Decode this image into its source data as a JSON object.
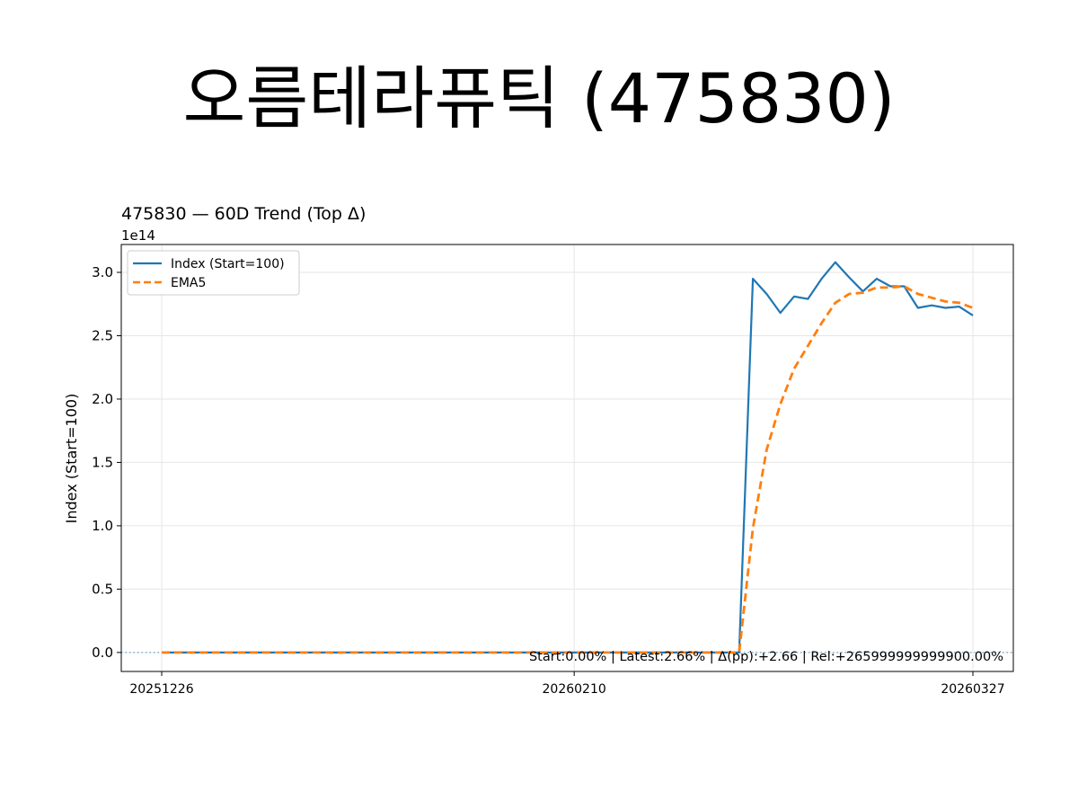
{
  "page": {
    "title": "오름테라퓨틱 (475830)"
  },
  "chart_data": {
    "type": "line",
    "title": "475830 — 60D Trend (Top Δ)",
    "ylabel": "Index (Start=100)",
    "xlabel": "",
    "y_offset_label": "1e14",
    "ylim": [
      -0.15,
      3.22
    ],
    "yticks": [
      0.0,
      0.5,
      1.0,
      1.5,
      2.0,
      2.5,
      3.0
    ],
    "ytick_labels": [
      "0.0",
      "0.5",
      "1.0",
      "1.5",
      "2.0",
      "2.5",
      "3.0"
    ],
    "xtick_labels": [
      {
        "index": 0,
        "label": "20251226"
      },
      {
        "index": 30,
        "label": "20260210"
      },
      {
        "index": 59,
        "label": "20260327"
      }
    ],
    "grid": true,
    "legend_position": "top-left",
    "baseline": 0.0,
    "annotation": "Start:0.00% | Latest:2.66% | Δ(pp):+2.66 | Rel:+265999999999900.00%",
    "series": [
      {
        "name": "Index (Start=100)",
        "color": "#1f77b4",
        "style": "solid",
        "values": [
          0,
          0,
          0,
          0,
          0,
          0,
          0,
          0,
          0,
          0,
          0,
          0,
          0,
          0,
          0,
          0,
          0,
          0,
          0,
          0,
          0,
          0,
          0,
          0,
          0,
          0,
          0,
          0,
          0,
          0,
          0,
          0,
          0,
          0,
          0,
          0,
          0,
          0,
          0,
          0,
          0,
          0,
          0,
          2.95,
          2.83,
          2.68,
          2.81,
          2.79,
          2.95,
          3.08,
          2.96,
          2.85,
          2.95,
          2.89,
          2.89,
          2.72,
          2.74,
          2.72,
          2.73,
          2.66
        ]
      },
      {
        "name": "EMA5",
        "color": "#ff7f0e",
        "style": "dashed",
        "values": [
          0,
          0,
          0,
          0,
          0,
          0,
          0,
          0,
          0,
          0,
          0,
          0,
          0,
          0,
          0,
          0,
          0,
          0,
          0,
          0,
          0,
          0,
          0,
          0,
          0,
          0,
          0,
          0,
          0,
          0,
          0,
          0,
          0,
          0,
          0,
          0,
          0,
          0,
          0,
          0,
          0,
          0,
          0,
          0.98,
          1.6,
          1.96,
          2.24,
          2.42,
          2.6,
          2.76,
          2.83,
          2.84,
          2.88,
          2.88,
          2.89,
          2.83,
          2.8,
          2.77,
          2.76,
          2.72
        ]
      }
    ]
  }
}
